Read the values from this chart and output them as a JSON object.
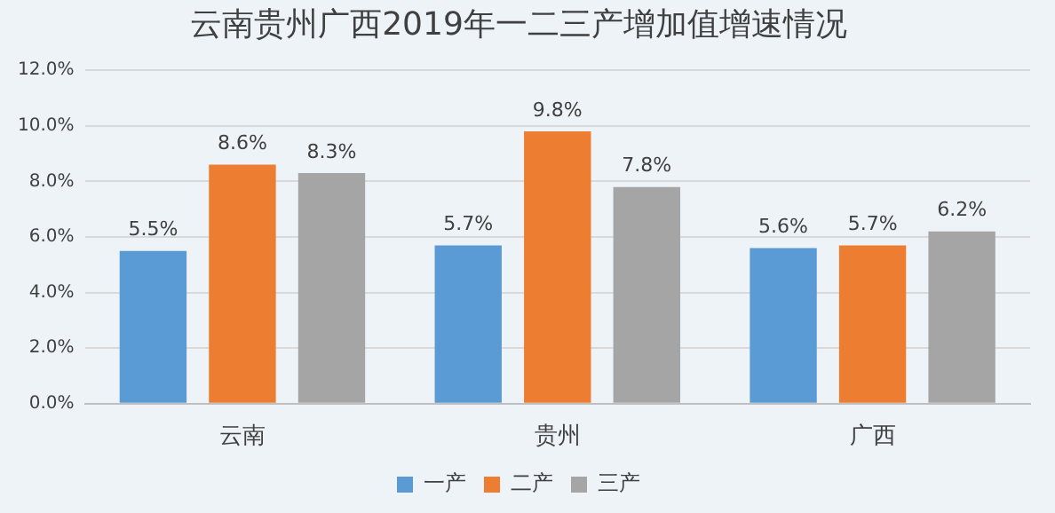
{
  "chart_data": {
    "type": "bar",
    "title": "云南贵州广西2019年一二三产增加值增速情况",
    "categories": [
      "云南",
      "贵州",
      "广西"
    ],
    "series": [
      {
        "name": "一产",
        "color": "#5b9bd5",
        "values": [
          5.5,
          5.7,
          5.6
        ],
        "value_labels": [
          "5.5%",
          "5.7%",
          "5.6%"
        ]
      },
      {
        "name": "二产",
        "color": "#ed7d31",
        "values": [
          8.6,
          9.8,
          5.7
        ],
        "value_labels": [
          "8.6%",
          "9.8%",
          "5.7%"
        ]
      },
      {
        "name": "三产",
        "color": "#a5a5a5",
        "values": [
          8.3,
          7.8,
          6.2
        ],
        "value_labels": [
          "8.3%",
          "7.8%",
          "6.2%"
        ]
      }
    ],
    "ylim": [
      0,
      12
    ],
    "yticks": [
      {
        "value": 0,
        "label": "0.0%"
      },
      {
        "value": 2,
        "label": "2.0%"
      },
      {
        "value": 4,
        "label": "4.0%"
      },
      {
        "value": 6,
        "label": "6.0%"
      },
      {
        "value": 8,
        "label": "8.0%"
      },
      {
        "value": 10,
        "label": "10.0%"
      },
      {
        "value": 12,
        "label": "12.0%"
      }
    ],
    "grid": "y",
    "legend": "bottom"
  }
}
